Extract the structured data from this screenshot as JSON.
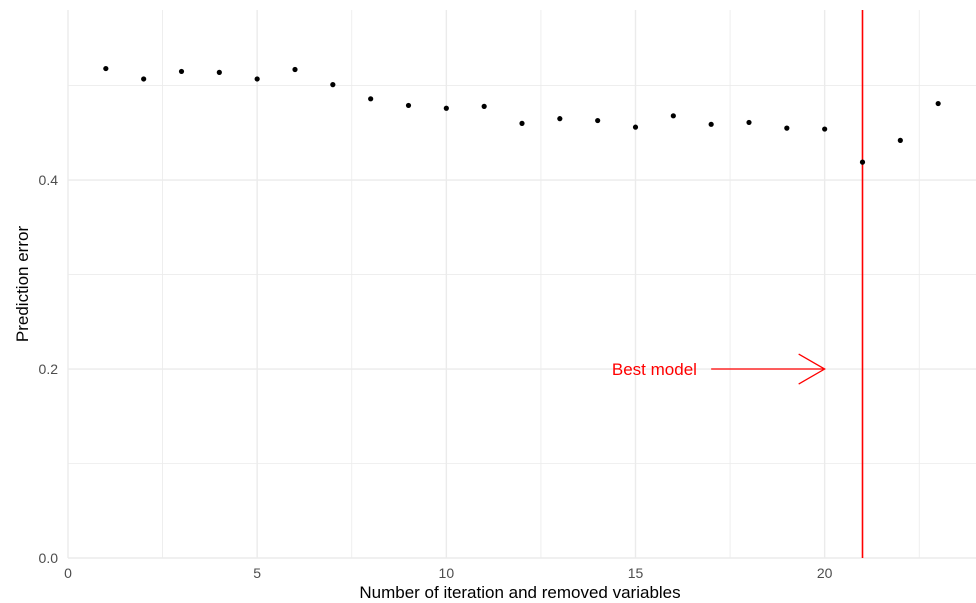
{
  "chart_data": {
    "type": "scatter",
    "title": "",
    "xlabel": "Number of iteration and removed variables",
    "ylabel": "Prediction error",
    "xlim": [
      0,
      24
    ],
    "ylim": [
      0,
      0.58
    ],
    "x_ticks": [
      0,
      5,
      10,
      15,
      20
    ],
    "y_ticks": [
      0.0,
      0.2,
      0.4
    ],
    "x_tick_labels": [
      "0",
      "5",
      "10",
      "15",
      "20"
    ],
    "y_tick_labels": [
      "0.0",
      "0.2",
      "0.4"
    ],
    "grid": true,
    "series": [
      {
        "x": [
          1,
          2,
          3,
          4,
          5,
          6,
          7,
          8,
          9,
          10,
          11,
          12,
          13,
          14,
          15,
          16,
          17,
          18,
          19,
          20,
          21,
          22,
          23
        ],
        "y": [
          0.518,
          0.507,
          0.515,
          0.514,
          0.507,
          0.517,
          0.501,
          0.486,
          0.479,
          0.476,
          0.478,
          0.46,
          0.465,
          0.463,
          0.456,
          0.468,
          0.459,
          0.461,
          0.455,
          0.454,
          0.419,
          0.442,
          0.481
        ]
      }
    ],
    "vertical_line": {
      "x": 21,
      "color": "#ff0000"
    },
    "annotation": {
      "text": "Best model",
      "color": "#ff0000",
      "text_x": 15.5,
      "arrow_from_x": 17.0,
      "arrow_to_x": 20.0,
      "y": 0.2
    },
    "colors": {
      "points": "#000000",
      "grid": "#ebebeb",
      "highlight": "#ff0000"
    }
  }
}
